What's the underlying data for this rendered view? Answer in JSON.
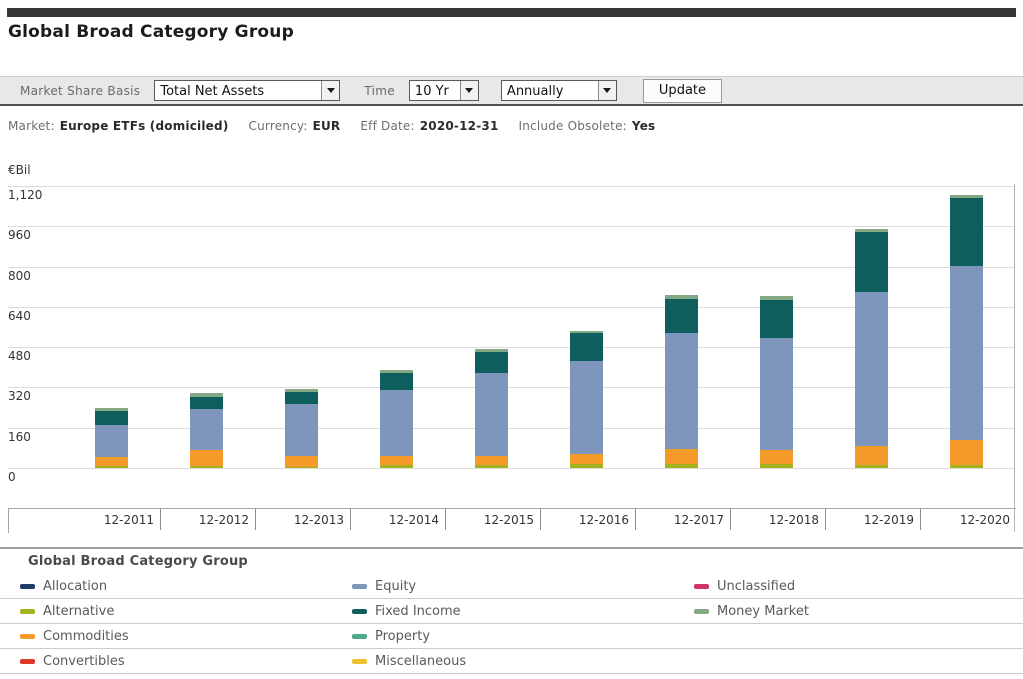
{
  "header": {
    "title": "Global Broad Category Group"
  },
  "toolbar": {
    "market_share_basis_label": "Market Share Basis",
    "market_share_basis_value": "Total Net Assets",
    "time_label": "Time",
    "time_value": "10 Yr",
    "frequency_value": "Annually",
    "update_label": "Update"
  },
  "info_bar": {
    "items": [
      {
        "label": "Market:",
        "value": "Europe ETFs (domiciled)"
      },
      {
        "label": "Currency:",
        "value": "EUR"
      },
      {
        "label": "Eff Date:",
        "value": "2020-12-31"
      },
      {
        "label": "Include Obsolete:",
        "value": "Yes"
      }
    ]
  },
  "chart_data": {
    "type": "bar",
    "stacked": true,
    "title": "Global Broad Category Group",
    "unit_label": "€Bil",
    "categories": [
      "12-2011",
      "12-2012",
      "12-2013",
      "12-2014",
      "12-2015",
      "12-2016",
      "12-2017",
      "12-2018",
      "12-2019",
      "12-2020"
    ],
    "series": [
      {
        "name": "Alternative",
        "color": "#a3b21d",
        "values": [
          8,
          8,
          6,
          12,
          12,
          14,
          17,
          17,
          10,
          10
        ]
      },
      {
        "name": "Commodities",
        "color": "#f49a28",
        "values": [
          36,
          62,
          42,
          36,
          36,
          40,
          60,
          56,
          79,
          103
        ]
      },
      {
        "name": "Equity",
        "color": "#7e96bc",
        "values": [
          128,
          166,
          205,
          262,
          328,
          370,
          459,
          443,
          611,
          691
        ]
      },
      {
        "name": "Fixed Income",
        "color": "#0d5e5c",
        "values": [
          55,
          48,
          49,
          69,
          86,
          111,
          137,
          150,
          238,
          270
        ]
      },
      {
        "name": "Money Market",
        "color": "#83a883",
        "values": [
          11,
          13,
          13,
          11,
          12,
          10,
          13,
          16,
          13,
          12
        ]
      },
      {
        "name": "Allocation",
        "color": "#1e3c6e",
        "values": [
          0,
          0,
          0,
          0,
          0,
          0,
          0,
          0,
          0,
          0
        ]
      },
      {
        "name": "Convertibles",
        "color": "#dd3826",
        "values": [
          0,
          0,
          0,
          0,
          0,
          0,
          0,
          0,
          0,
          0
        ]
      },
      {
        "name": "Miscellaneous",
        "color": "#f2c12e",
        "values": [
          0,
          0,
          0,
          0,
          0,
          0,
          0,
          0,
          0,
          0
        ]
      },
      {
        "name": "Property",
        "color": "#4fa887",
        "values": [
          0,
          0,
          0,
          0,
          0,
          0,
          0,
          0,
          0,
          0
        ]
      },
      {
        "name": "Unclassified",
        "color": "#cf3366",
        "values": [
          0,
          0,
          0,
          0,
          0,
          0,
          0,
          0,
          0,
          0
        ]
      }
    ],
    "ylim": [
      0,
      1120
    ],
    "ytick_values": [
      0,
      160,
      320,
      480,
      640,
      800,
      960,
      1120
    ],
    "ytick_labels": [
      "0",
      "160",
      "320",
      "480",
      "640",
      "800",
      "960",
      "1,120"
    ],
    "grid": true,
    "legend_position": "bottom"
  },
  "legend": {
    "title": "Global Broad Category Group",
    "rows": [
      [
        {
          "label": "Allocation",
          "color": "#1e3c6e"
        },
        {
          "label": "Equity",
          "color": "#7e96bc"
        },
        {
          "label": "Unclassified",
          "color": "#cf3366"
        }
      ],
      [
        {
          "label": "Alternative",
          "color": "#a3b21d"
        },
        {
          "label": "Fixed Income",
          "color": "#0d5e5c"
        },
        {
          "label": "Money Market",
          "color": "#83a883"
        }
      ],
      [
        {
          "label": "Commodities",
          "color": "#f49a28"
        },
        {
          "label": "Property",
          "color": "#4fa887"
        }
      ],
      [
        {
          "label": "Convertibles",
          "color": "#dd3826"
        },
        {
          "label": "Miscellaneous",
          "color": "#f2c12e"
        }
      ]
    ]
  }
}
